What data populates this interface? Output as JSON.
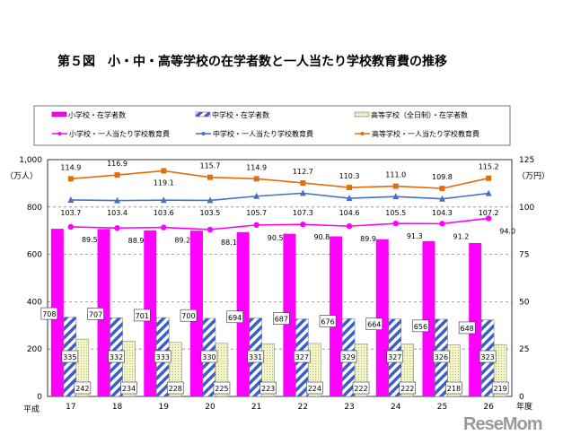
{
  "chart_data": {
    "type": "bar+line",
    "title": "第５図　小・中・高等学校の在学者数と一人当たり学校教育費の推移",
    "era_label": "平成",
    "x_unit": "年度",
    "categories": [
      "17",
      "18",
      "19",
      "20",
      "21",
      "22",
      "23",
      "24",
      "25",
      "26"
    ],
    "left_axis": {
      "label": "（万人）",
      "range": [
        0,
        1000
      ],
      "ticks": [
        "0",
        "200",
        "400",
        "600",
        "800",
        "1,000"
      ]
    },
    "right_axis": {
      "label": "（万円）",
      "range": [
        0,
        125
      ],
      "ticks": [
        "0",
        "25",
        "50",
        "75",
        "100",
        "125"
      ]
    },
    "grid": "dashed horizontal",
    "legend_position": "top",
    "bar_series": [
      {
        "name": "小学校・在学者数",
        "color": "#ff00ff",
        "values": [
          708,
          707,
          701,
          700,
          694,
          687,
          676,
          664,
          656,
          648
        ]
      },
      {
        "name": "中学校・在学者数",
        "color": "#3a5fcd",
        "values": [
          335,
          332,
          333,
          330,
          331,
          327,
          329,
          327,
          326,
          323
        ]
      },
      {
        "name": "高等学校（全日制）・在学者数",
        "color": "#f3f5c8",
        "values": [
          242,
          234,
          228,
          225,
          223,
          224,
          222,
          222,
          218,
          219
        ]
      }
    ],
    "line_series": [
      {
        "name": "小学校・一人当たり学校教育費",
        "color": "#ff00ff",
        "marker": "circle",
        "values": [
          89.5,
          88.9,
          89.2,
          88.1,
          90.5,
          90.8,
          89.9,
          91.3,
          91.2,
          94.0
        ]
      },
      {
        "name": "中学校・一人当たり学校教育費",
        "color": "#4472c4",
        "marker": "triangle",
        "values": [
          103.7,
          103.4,
          103.6,
          103.5,
          105.7,
          107.3,
          104.6,
          105.5,
          104.3,
          107.2
        ]
      },
      {
        "name": "高等学校・一人当たり学校教育費",
        "color": "#e46c0a",
        "marker": "square",
        "values": [
          114.9,
          116.9,
          119.1,
          115.7,
          114.9,
          112.7,
          110.3,
          111.0,
          109.8,
          115.2
        ]
      }
    ]
  },
  "watermark": "ReseMom"
}
